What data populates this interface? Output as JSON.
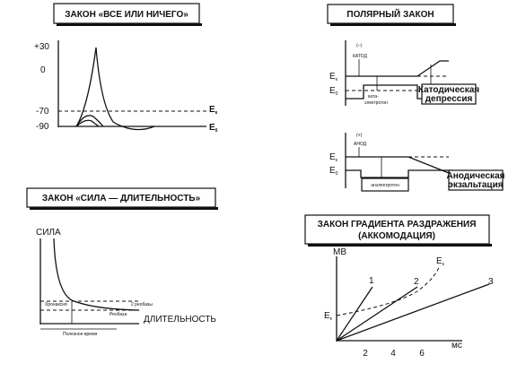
{
  "panels": [
    {
      "title": "ЗАКОН «ВСЕ ИЛИ НИЧЕГО»",
      "ticks": [
        "+30",
        "0",
        "-70",
        "-90"
      ],
      "ek": {
        "main": "E",
        "sub": "к"
      },
      "e0": {
        "main": "E",
        "sub": "0"
      }
    },
    {
      "title": "ПОЛЯРНЫЙ ЗАКОН",
      "cathode": {
        "sign": "(–)",
        "label": "КАТОД",
        "ek": {
          "main": "E",
          "sub": "к"
        },
        "e0": {
          "main": "E",
          "sub": "0"
        },
        "tone": [
          "ката-",
          "электротон"
        ],
        "result": [
          "Катодическая",
          "депрессия"
        ]
      },
      "anode": {
        "sign": "(+)",
        "label": "АНОД",
        "ek": {
          "main": "E",
          "sub": "к"
        },
        "e0": {
          "main": "E",
          "sub": "0"
        },
        "tone": [
          "анэлектротон"
        ],
        "result": [
          "Анодическая",
          "экзальтация"
        ]
      }
    },
    {
      "title": "ЗАКОН «СИЛА — ДЛИТЕЛЬНОСТЬ»",
      "y_label": "СИЛА",
      "x_label": "ДЛИТЕЛЬНОСТЬ",
      "chronaxie": "Хронаксия",
      "two_rheobase": "2 реобазы",
      "rheobase": "Реобаза",
      "useful_time": "Полезное время"
    },
    {
      "title": [
        "ЗАКОН ГРАДИЕНТА РАЗДРАЖЕНИЯ",
        "(АККОМОДАЦИЯ)"
      ],
      "y_label": "МВ",
      "x_label": "мс",
      "x_ticks": [
        "2",
        "4",
        "6"
      ],
      "lines": [
        "1",
        "2",
        "3"
      ],
      "ek": {
        "main": "E",
        "sub": "к"
      },
      "curve": {
        "main": "E",
        "sub": "к"
      }
    }
  ]
}
